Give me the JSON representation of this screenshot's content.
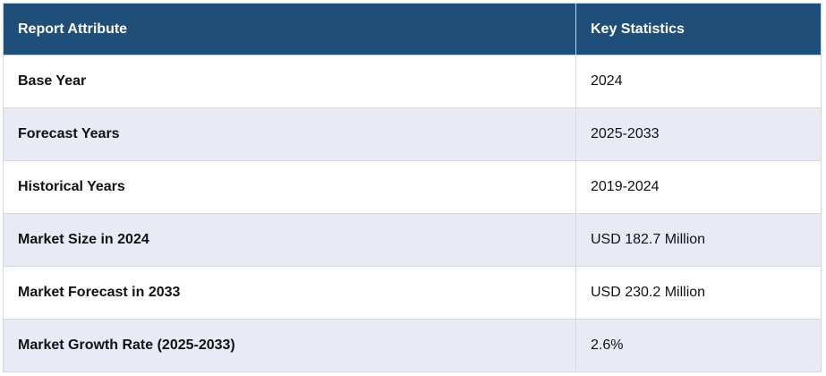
{
  "table": {
    "header": [
      "Report Attribute",
      "Key Statistics"
    ],
    "rows": [
      [
        "Base Year",
        "2024"
      ],
      [
        "Forecast Years",
        "2025-2033"
      ],
      [
        "Historical Years",
        "2019-2024"
      ],
      [
        "Market Size in 2024",
        "USD 182.7 Million"
      ],
      [
        "Market Forecast in 2033",
        "USD 230.2 Million"
      ],
      [
        "Market Growth Rate (2025-2033)",
        "2.6%"
      ]
    ]
  }
}
